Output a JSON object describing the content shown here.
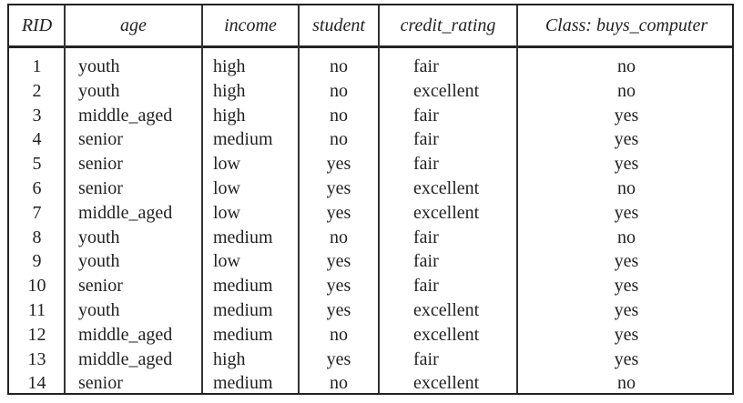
{
  "table": {
    "headers": [
      "RID",
      "age",
      "income",
      "student",
      "credit_rating",
      "Class: buys_computer"
    ],
    "rows": [
      [
        "1",
        "youth",
        "high",
        "no",
        "fair",
        "no"
      ],
      [
        "2",
        "youth",
        "high",
        "no",
        "excellent",
        "no"
      ],
      [
        "3",
        "middle_aged",
        "high",
        "no",
        "fair",
        "yes"
      ],
      [
        "4",
        "senior",
        "medium",
        "no",
        "fair",
        "yes"
      ],
      [
        "5",
        "senior",
        "low",
        "yes",
        "fair",
        "yes"
      ],
      [
        "6",
        "senior",
        "low",
        "yes",
        "excellent",
        "no"
      ],
      [
        "7",
        "middle_aged",
        "low",
        "yes",
        "excellent",
        "yes"
      ],
      [
        "8",
        "youth",
        "medium",
        "no",
        "fair",
        "no"
      ],
      [
        "9",
        "youth",
        "low",
        "yes",
        "fair",
        "yes"
      ],
      [
        "10",
        "senior",
        "medium",
        "yes",
        "fair",
        "yes"
      ],
      [
        "11",
        "youth",
        "medium",
        "yes",
        "excellent",
        "yes"
      ],
      [
        "12",
        "middle_aged",
        "medium",
        "no",
        "excellent",
        "yes"
      ],
      [
        "13",
        "middle_aged",
        "high",
        "yes",
        "fair",
        "yes"
      ],
      [
        "14",
        "senior",
        "medium",
        "no",
        "excellent",
        "no"
      ]
    ]
  }
}
